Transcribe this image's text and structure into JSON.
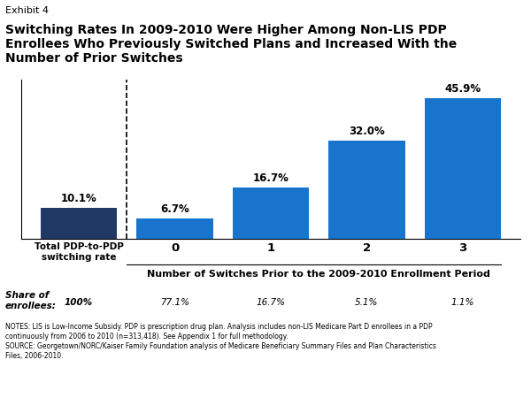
{
  "chart_data": {
    "type": "bar",
    "exhibit_label": "Exhibit 4",
    "title": "Switching Rates In 2009-2010 Were Higher Among Non-LIS PDP\nEnrollees Who Previously Switched Plans and Increased With the\nNumber of Prior Switches",
    "categories": [
      "Total PDP-to-PDP\nswitching rate",
      "0",
      "1",
      "2",
      "3"
    ],
    "values": [
      10.1,
      6.7,
      16.7,
      32.0,
      45.9
    ],
    "value_labels": [
      "10.1%",
      "6.7%",
      "16.7%",
      "32.0%",
      "45.9%"
    ],
    "data_labels": true,
    "colors": [
      "#1f3864",
      "#1874cd",
      "#1874cd",
      "#1874cd",
      "#1874cd"
    ],
    "xlabel": "Number of Switches Prior to the 2009-2010 Enrollment Period",
    "ylim": [
      0,
      52
    ],
    "yticks": [],
    "tick_labels": "x",
    "share_label": "Share of\nenrollees:",
    "share_labels": [
      "100%",
      "77.1%",
      "16.7%",
      "5.1%",
      "1.1%"
    ],
    "notes": "NOTES: LIS is Low-Income Subsidy. PDP is prescription drug plan. Analysis includes non-LIS Medicare Part D enrollees in a PDP\ncontinuously from 2006 to 2010 (n=313,418). See Appendix 1 for full methodology.\nSOURCE: Georgetown/NORC/Kaiser Family Foundation analysis of Medicare Beneficiary Summary Files and Plan Characteristics\nFiles, 2006-2010."
  }
}
